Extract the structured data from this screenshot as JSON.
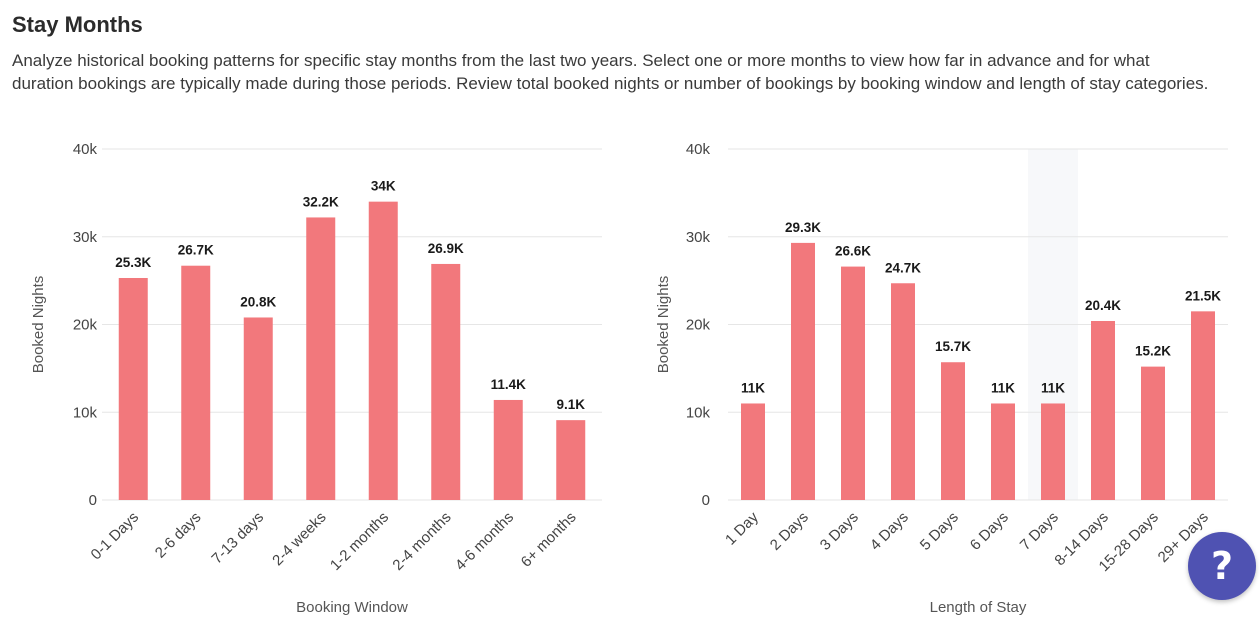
{
  "page": {
    "title": "Stay Months",
    "description": "Analyze historical booking patterns for specific stay months from the last two years. Select one or more months to view how far in advance and for what duration bookings are typically made during those periods. Review total booked nights or number of bookings by booking window and length of stay categories."
  },
  "help_button": {
    "icon": "question-icon",
    "label": "?"
  },
  "colors": {
    "bar": "#f2787c",
    "highlight_band": "#f7f8fa",
    "help_button": "#4f52b2"
  },
  "chart_data": [
    {
      "type": "bar",
      "xlabel": "Booking Window",
      "ylabel": "Booked Nights",
      "ylim": [
        0,
        40000
      ],
      "yticks": [
        0,
        10000,
        20000,
        30000,
        40000
      ],
      "ytick_labels": [
        "0",
        "10k",
        "20k",
        "30k",
        "40k"
      ],
      "grid": true,
      "categories": [
        "0-1 Days",
        "2-6 days",
        "7-13 days",
        "2-4 weeks",
        "1-2 months",
        "2-4 months",
        "4-6 months",
        "6+ months"
      ],
      "values": [
        25300,
        26700,
        20800,
        32200,
        34000,
        26900,
        11400,
        9100
      ],
      "data_labels": [
        "25.3K",
        "26.7K",
        "20.8K",
        "32.2K",
        "34K",
        "26.9K",
        "11.4K",
        "9.1K"
      ]
    },
    {
      "type": "bar",
      "xlabel": "Length of Stay",
      "ylabel": "Booked Nights",
      "ylim": [
        0,
        40000
      ],
      "yticks": [
        0,
        10000,
        20000,
        30000,
        40000
      ],
      "ytick_labels": [
        "0",
        "10k",
        "20k",
        "30k",
        "40k"
      ],
      "grid": true,
      "highlight_category": "7 Days",
      "categories": [
        "1 Day",
        "2 Days",
        "3 Days",
        "4 Days",
        "5 Days",
        "6 Days",
        "7 Days",
        "8-14 Days",
        "15-28 Days",
        "29+ Days"
      ],
      "values": [
        11000,
        29300,
        26600,
        24700,
        15700,
        11000,
        11000,
        20400,
        15200,
        21500
      ],
      "data_labels": [
        "11K",
        "29.3K",
        "26.6K",
        "24.7K",
        "15.7K",
        "11K",
        "11K",
        "20.4K",
        "15.2K",
        "21.5K"
      ]
    }
  ]
}
